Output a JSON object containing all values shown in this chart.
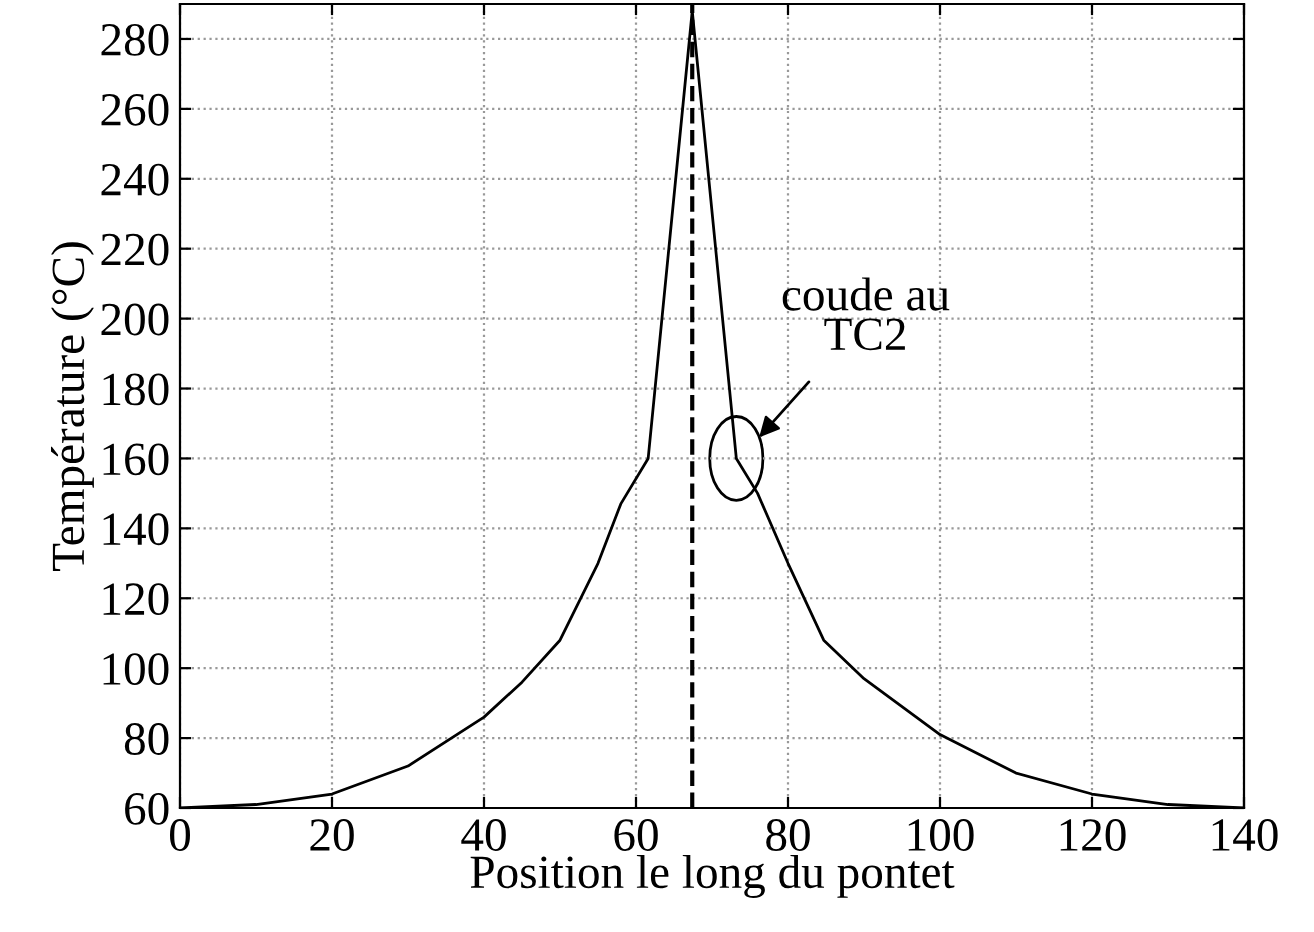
{
  "chart_data": {
    "type": "line",
    "xlabel": "Position le long du pontet",
    "ylabel": "Température (°C)",
    "x": [
      0,
      10,
      20,
      30,
      40,
      45,
      50,
      55,
      58,
      61.6,
      67.4,
      73.2,
      76,
      80,
      84.7,
      90,
      100,
      110,
      120,
      130,
      140
    ],
    "series": [
      {
        "color": "#000000",
        "values": [
          60,
          61,
          64,
          72,
          86,
          96,
          108,
          130,
          147,
          160,
          288,
          160,
          150,
          130,
          108,
          97,
          81,
          70,
          64,
          61,
          60
        ]
      }
    ],
    "xlim": [
      0,
      140
    ],
    "ylim": [
      60,
      290
    ],
    "xticks": [
      0,
      20,
      40,
      60,
      80,
      100,
      120,
      140
    ],
    "yticks": [
      60,
      80,
      100,
      120,
      140,
      160,
      180,
      200,
      220,
      240,
      260,
      280
    ],
    "grid": true,
    "line_style": "solid",
    "marker": "none",
    "ref_lines": [
      {
        "axis": "x",
        "value": 67.4,
        "color": "#000000",
        "line_style": "dashed"
      }
    ],
    "annotations": [
      {
        "text": "coude au\nTC2",
        "x": 73.2,
        "y": 160
      }
    ]
  }
}
